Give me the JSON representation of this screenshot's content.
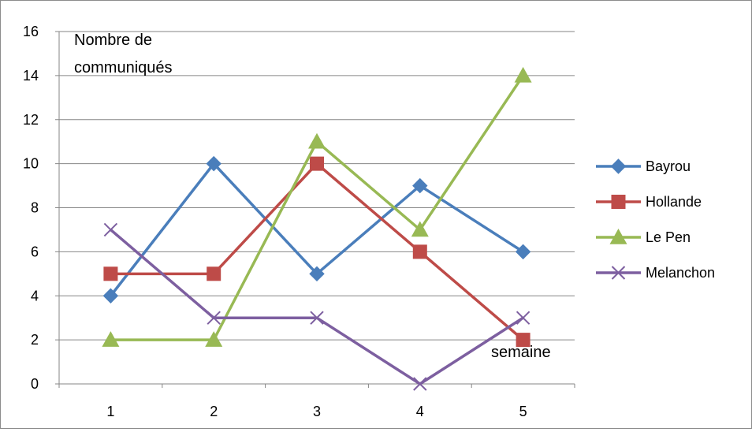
{
  "chart_data": {
    "type": "line",
    "title": "",
    "annotations": {
      "y_title_line1": "Nombre de",
      "y_title_line2": "communiqués",
      "x_title": "semaine"
    },
    "x": [
      1,
      2,
      3,
      4,
      5
    ],
    "x_tick_labels": [
      "1",
      "2",
      "3",
      "4",
      "5"
    ],
    "ylim": [
      0,
      16
    ],
    "y_ticks": [
      0,
      2,
      4,
      6,
      8,
      10,
      12,
      14,
      16
    ],
    "y_tick_labels": [
      "0",
      "2",
      "4",
      "6",
      "8",
      "10",
      "12",
      "14",
      "16"
    ],
    "grid": true,
    "legend_position": "right",
    "series": [
      {
        "name": "Bayrou",
        "values": [
          4,
          10,
          5,
          9,
          6
        ],
        "color": "#4a7ebb",
        "marker": "diamond"
      },
      {
        "name": "Hollande",
        "values": [
          5,
          5,
          10,
          6,
          2
        ],
        "color": "#be4b48",
        "marker": "square"
      },
      {
        "name": "Le Pen",
        "values": [
          2,
          2,
          11,
          7,
          14
        ],
        "color": "#98b954",
        "marker": "triangle"
      },
      {
        "name": "Melanchon",
        "values": [
          7,
          3,
          3,
          0,
          3
        ],
        "color": "#7d5fa0",
        "marker": "x"
      }
    ]
  }
}
